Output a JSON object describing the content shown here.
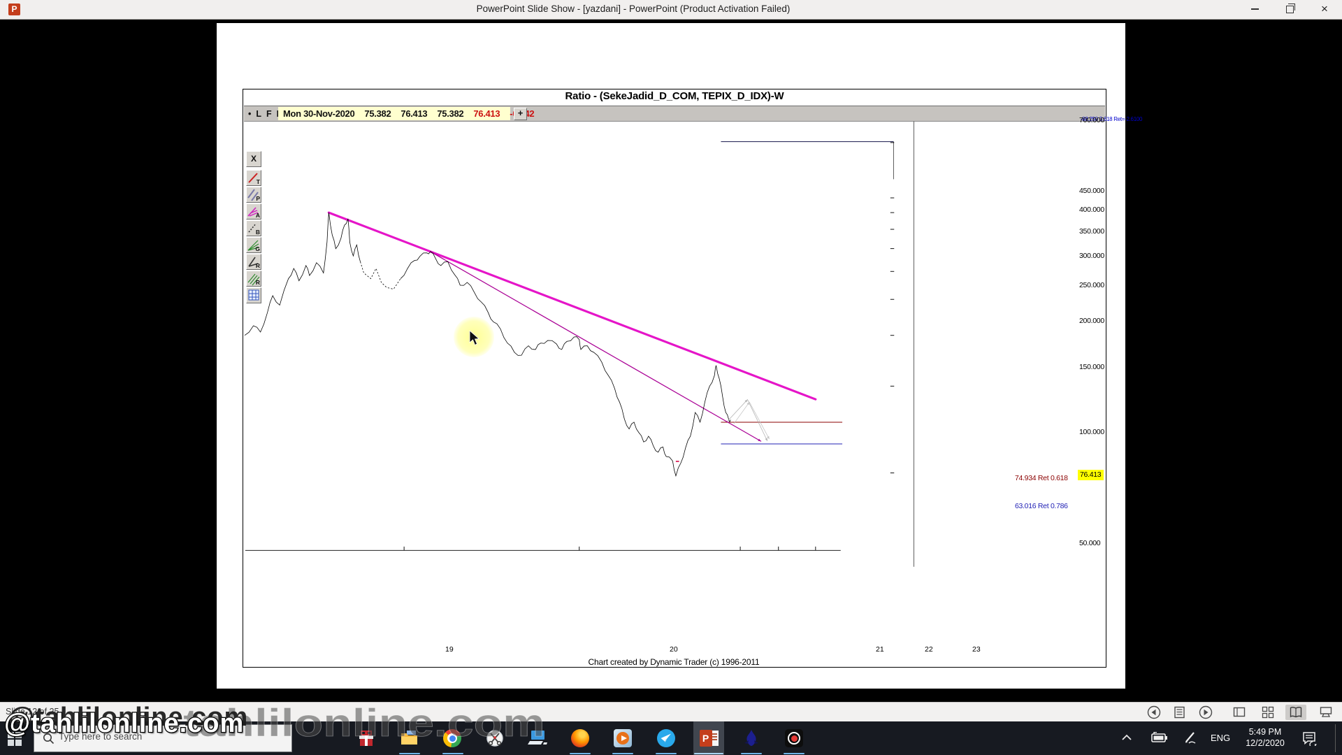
{
  "window": {
    "title": "PowerPoint Slide Show - [yazdani] - PowerPoint (Product Activation Failed)",
    "app_icon_letter": "P",
    "close_glyph": "×"
  },
  "chart": {
    "title": "Ratio - (SekeJadid_D_COM, TEPIX_D_IDX)-W",
    "quote": {
      "bullet": "•",
      "flags": [
        "L",
        "F",
        "R"
      ],
      "date": "Mon 30-Nov-2020",
      "open": "75.382",
      "high": "76.413",
      "low": "75.382",
      "close": "76.413",
      "change": "-0.642",
      "plus": "+"
    },
    "tools": [
      {
        "name": "close-tool",
        "label": "X"
      },
      {
        "name": "trendline-tool",
        "label": "T"
      },
      {
        "name": "parallel-tool",
        "label": "P"
      },
      {
        "name": "andrews-tool",
        "label": "A"
      },
      {
        "name": "b-tool",
        "label": "B"
      },
      {
        "name": "gann-fan-tool",
        "label": "G"
      },
      {
        "name": "retracement-tool",
        "label": "R"
      },
      {
        "name": "regression-tool",
        "label": "R"
      },
      {
        "name": "grid-tool",
        "label": ""
      }
    ],
    "credit": "Chart created by Dynamic Trader  (c) 1996-2011"
  },
  "chart_data": {
    "type": "line",
    "title": "Ratio - (SekeJadid_D_COM, TEPIX_D_IDX)-W",
    "y_scale": "log",
    "grid": false,
    "y_ticks": [
      {
        "value": 700,
        "label": "700.000"
      },
      {
        "value": 450,
        "label": "450.000"
      },
      {
        "value": 400,
        "label": "400.000"
      },
      {
        "value": 350,
        "label": "350.000"
      },
      {
        "value": 300,
        "label": "300.000"
      },
      {
        "value": 250,
        "label": "250.000"
      },
      {
        "value": 200,
        "label": "200.000"
      },
      {
        "value": 150,
        "label": "150.000"
      },
      {
        "value": 100,
        "label": "100.000"
      },
      {
        "value": 50,
        "label": "50.000"
      }
    ],
    "x_ticks": [
      {
        "year": 2019,
        "label": "19"
      },
      {
        "year": 2020,
        "label": "20"
      },
      {
        "year": 2021,
        "label": "21"
      },
      {
        "year": 2022,
        "label": "22"
      },
      {
        "year": 2023,
        "label": "23"
      }
    ],
    "series": {
      "name": "Ratio SekeJadid/TEPIX weekly",
      "dashed_range": [
        23,
        30
      ],
      "points": [
        [
          2018.09,
          150
        ],
        [
          2018.14,
          162
        ],
        [
          2018.18,
          154
        ],
        [
          2018.22,
          180
        ],
        [
          2018.25,
          206
        ],
        [
          2018.29,
          191
        ],
        [
          2018.34,
          236
        ],
        [
          2018.37,
          256
        ],
        [
          2018.4,
          232
        ],
        [
          2018.44,
          262
        ],
        [
          2018.46,
          242
        ],
        [
          2018.5,
          268
        ],
        [
          2018.54,
          247
        ],
        [
          2018.56,
          316
        ],
        [
          2018.57,
          400
        ],
        [
          2018.59,
          334
        ],
        [
          2018.61,
          300
        ],
        [
          2018.64,
          326
        ],
        [
          2018.66,
          362
        ],
        [
          2018.68,
          381
        ],
        [
          2018.69,
          316
        ],
        [
          2018.71,
          283
        ],
        [
          2018.73,
          309
        ],
        [
          2018.75,
          270
        ],
        [
          2018.77,
          247
        ],
        [
          2018.81,
          236
        ],
        [
          2018.84,
          256
        ],
        [
          2018.87,
          229
        ],
        [
          2018.9,
          220
        ],
        [
          2018.94,
          217
        ],
        [
          2018.98,
          236
        ],
        [
          2019.02,
          256
        ],
        [
          2019.06,
          273
        ],
        [
          2019.09,
          282
        ],
        [
          2019.13,
          290
        ],
        [
          2019.15,
          293
        ],
        [
          2019.18,
          277
        ],
        [
          2019.21,
          262
        ],
        [
          2019.25,
          270
        ],
        [
          2019.29,
          243
        ],
        [
          2019.32,
          224
        ],
        [
          2019.36,
          229
        ],
        [
          2019.4,
          212
        ],
        [
          2019.44,
          196
        ],
        [
          2019.48,
          180
        ],
        [
          2019.51,
          167
        ],
        [
          2019.55,
          158
        ],
        [
          2019.59,
          141
        ],
        [
          2019.63,
          131
        ],
        [
          2019.67,
          128
        ],
        [
          2019.71,
          138
        ],
        [
          2019.75,
          134
        ],
        [
          2019.78,
          141
        ],
        [
          2019.82,
          144
        ],
        [
          2019.87,
          140
        ],
        [
          2019.9,
          134
        ],
        [
          2019.93,
          143
        ],
        [
          2019.97,
          148
        ],
        [
          2020.0,
          145
        ],
        [
          2020.01,
          134
        ],
        [
          2020.05,
          138
        ],
        [
          2020.09,
          131
        ],
        [
          2020.14,
          121
        ],
        [
          2020.18,
          109
        ],
        [
          2020.22,
          98
        ],
        [
          2020.25,
          88
        ],
        [
          2020.28,
          77
        ],
        [
          2020.31,
          71
        ],
        [
          2020.34,
          75
        ],
        [
          2020.37,
          69
        ],
        [
          2020.4,
          64
        ],
        [
          2020.43,
          67
        ],
        [
          2020.46,
          62
        ],
        [
          2020.49,
          59
        ],
        [
          2020.52,
          61.5
        ],
        [
          2020.54,
          57
        ],
        [
          2020.58,
          55
        ],
        [
          2020.6,
          48.8
        ],
        [
          2020.63,
          54
        ],
        [
          2020.66,
          61
        ],
        [
          2020.69,
          67
        ],
        [
          2020.72,
          81
        ],
        [
          2020.75,
          75
        ],
        [
          2020.78,
          88
        ],
        [
          2020.81,
          100
        ],
        [
          2020.84,
          109
        ],
        [
          2020.85,
          118
        ],
        [
          2020.87,
          106
        ],
        [
          2020.89,
          92
        ],
        [
          2020.91,
          81
        ],
        [
          2020.93,
          76
        ],
        [
          2020.94,
          76.4
        ]
      ]
    },
    "last_price": {
      "value": 76.413,
      "label": "76.413"
    },
    "levels": [
      {
        "value": 74.934,
        "label": "74.934 Ret 0.618",
        "color": "#8b0000",
        "from_t": 2020.88,
        "to_t": 2023.72
      },
      {
        "value": 63.016,
        "label": "63.016 Ret 0.786",
        "color": "#2121b5",
        "from_t": 2020.88,
        "to_t": 2023.72
      },
      {
        "value": 705,
        "label": "-88.250 3.618 Ret=-2.6100",
        "color": "#15154a",
        "label_color": "#0000cc",
        "from_t": 2020.88,
        "to_t": 2025.1,
        "small": true
      }
    ],
    "trendlines": [
      {
        "from": [
          2018.57,
          400
        ],
        "to": [
          2023.0,
          90
        ],
        "color": "#e515c8",
        "width": 4
      },
      {
        "from": [
          2019.15,
          293
        ],
        "to": [
          2021.54,
          64.4
        ],
        "color": "#aa0095",
        "width": 1.6,
        "arrow": true
      }
    ],
    "projections": [
      {
        "points": [
          [
            2020.92,
            75.5
          ],
          [
            2021.19,
            89.8
          ],
          [
            2021.71,
            64.5
          ]
        ],
        "color": "#b3b3b3"
      },
      {
        "points": [
          [
            2020.96,
            74.0
          ],
          [
            2021.24,
            88.0
          ],
          [
            2021.76,
            65.5
          ]
        ],
        "color": "#c4c4c4"
      }
    ],
    "marks": [
      {
        "t": 2020.61,
        "value": 54.8,
        "color": "#d40040"
      }
    ]
  },
  "presenter": {
    "slide_status": "Slide 12 of 25"
  },
  "taskbar": {
    "search_placeholder": "Type here to search"
  },
  "tray": {
    "language": "ENG",
    "time": "5:49 PM",
    "date": "12/2/2020"
  },
  "watermark": {
    "big": "@tahlilonline.com",
    "ghost": "tahlilonline.com"
  }
}
